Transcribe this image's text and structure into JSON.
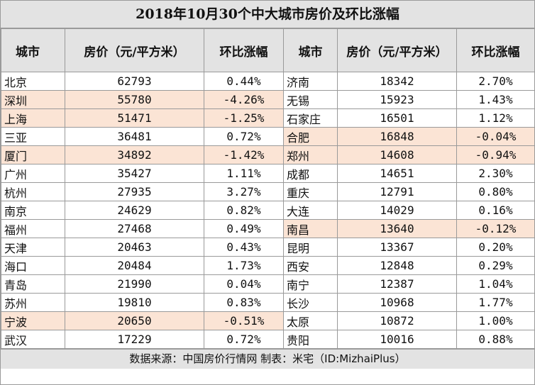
{
  "title": "2018年10月30个中大城市房价及环比涨幅",
  "headers": {
    "city": "城市",
    "price": "房价（元/平方米）",
    "change": "环比涨幅"
  },
  "colors": {
    "highlight": "#fbe4d5",
    "header_bg": "#e3e3e3"
  },
  "rows": [
    {
      "l": {
        "city": "北京",
        "price": "62793",
        "change": "0.44%",
        "hl": false
      },
      "r": {
        "city": "济南",
        "price": "18342",
        "change": "2.70%",
        "hl": false
      }
    },
    {
      "l": {
        "city": "深圳",
        "price": "55780",
        "change": "-4.26%",
        "hl": true
      },
      "r": {
        "city": "无锡",
        "price": "15923",
        "change": "1.43%",
        "hl": false
      }
    },
    {
      "l": {
        "city": "上海",
        "price": "51471",
        "change": "-1.25%",
        "hl": true
      },
      "r": {
        "city": "石家庄",
        "price": "16501",
        "change": "1.12%",
        "hl": false
      }
    },
    {
      "l": {
        "city": "三亚",
        "price": "36481",
        "change": "0.72%",
        "hl": false
      },
      "r": {
        "city": "合肥",
        "price": "16848",
        "change": "-0.04%",
        "hl": true
      }
    },
    {
      "l": {
        "city": "厦门",
        "price": "34892",
        "change": "-1.42%",
        "hl": true
      },
      "r": {
        "city": "郑州",
        "price": "14608",
        "change": "-0.94%",
        "hl": true
      }
    },
    {
      "l": {
        "city": "广州",
        "price": "35427",
        "change": "1.11%",
        "hl": false
      },
      "r": {
        "city": "成都",
        "price": "14651",
        "change": "2.30%",
        "hl": false
      }
    },
    {
      "l": {
        "city": "杭州",
        "price": "27935",
        "change": "3.27%",
        "hl": false
      },
      "r": {
        "city": "重庆",
        "price": "12791",
        "change": "0.80%",
        "hl": false
      }
    },
    {
      "l": {
        "city": "南京",
        "price": "24629",
        "change": "0.82%",
        "hl": false
      },
      "r": {
        "city": "大连",
        "price": "14029",
        "change": "0.16%",
        "hl": false
      }
    },
    {
      "l": {
        "city": "福州",
        "price": "27468",
        "change": "0.49%",
        "hl": false
      },
      "r": {
        "city": "南昌",
        "price": "13640",
        "change": "-0.12%",
        "hl": true
      }
    },
    {
      "l": {
        "city": "天津",
        "price": "20463",
        "change": "0.43%",
        "hl": false
      },
      "r": {
        "city": "昆明",
        "price": "13367",
        "change": "0.20%",
        "hl": false
      }
    },
    {
      "l": {
        "city": "海口",
        "price": "20484",
        "change": "1.73%",
        "hl": false
      },
      "r": {
        "city": "西安",
        "price": "12848",
        "change": "0.29%",
        "hl": false
      }
    },
    {
      "l": {
        "city": "青岛",
        "price": "21990",
        "change": "0.04%",
        "hl": false
      },
      "r": {
        "city": "南宁",
        "price": "12387",
        "change": "1.04%",
        "hl": false
      }
    },
    {
      "l": {
        "city": "苏州",
        "price": "19810",
        "change": "0.83%",
        "hl": false
      },
      "r": {
        "city": "长沙",
        "price": "10968",
        "change": "1.77%",
        "hl": false
      }
    },
    {
      "l": {
        "city": "宁波",
        "price": "20650",
        "change": "-0.51%",
        "hl": true
      },
      "r": {
        "city": "太原",
        "price": "10872",
        "change": "1.00%",
        "hl": false
      }
    },
    {
      "l": {
        "city": "武汉",
        "price": "17229",
        "change": "0.72%",
        "hl": false
      },
      "r": {
        "city": "贵阳",
        "price": "10016",
        "change": "0.88%",
        "hl": false
      }
    }
  ],
  "footer": "数据来源：中国房价行情网  制表：米宅（ID:MizhaiPlus）"
}
